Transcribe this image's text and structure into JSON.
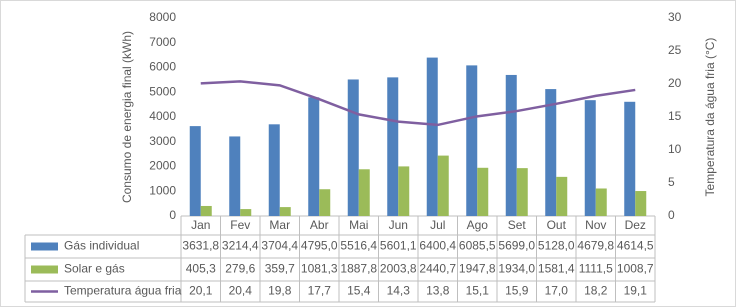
{
  "chart_data": {
    "type": "bar-line",
    "y_label": "Consumo de energia final (kWh)",
    "y2_label": "Temperatura da água fria (°C)",
    "categories": [
      "Jan",
      "Fev",
      "Mar",
      "Abr",
      "Mai",
      "Jun",
      "Jul",
      "Ago",
      "Set",
      "Out",
      "Nov",
      "Dez"
    ],
    "series": [
      {
        "name": "Gás individual",
        "type": "bar",
        "color": "#4f81bd",
        "values": [
          3631.8,
          3214.4,
          3704.4,
          4795.0,
          5516.4,
          5601.1,
          6400.4,
          6085.5,
          5699.0,
          5128.0,
          4679.8,
          4614.5
        ],
        "value_labels": [
          "3631,8",
          "3214,4",
          "3704,4",
          "4795,0",
          "5516,4",
          "5601,1",
          "6400,4",
          "6085,5",
          "5699,0",
          "5128,0",
          "4679,8",
          "4614,5"
        ]
      },
      {
        "name": "Solar e gás",
        "type": "bar",
        "color": "#9bbb59",
        "values": [
          405.3,
          279.6,
          359.7,
          1081.3,
          1887.8,
          2003.8,
          2440.7,
          1947.8,
          1934.0,
          1581.4,
          1111.5,
          1008.7
        ],
        "value_labels": [
          "405,3",
          "279,6",
          "359,7",
          "1081,3",
          "1887,8",
          "2003,8",
          "2440,7",
          "1947,8",
          "1934,0",
          "1581,4",
          "1111,5",
          "1008,7"
        ]
      },
      {
        "name": "Temperatura água fria",
        "type": "line",
        "axis": "y2",
        "color": "#7f5fa0",
        "values": [
          20.1,
          20.4,
          19.8,
          17.7,
          15.4,
          14.3,
          13.8,
          15.1,
          15.9,
          17.0,
          18.2,
          19.1
        ],
        "value_labels": [
          "20,1",
          "20,4",
          "19,8",
          "17,7",
          "15,4",
          "14,3",
          "13,8",
          "15,1",
          "15,9",
          "17,0",
          "18,2",
          "19,1"
        ]
      }
    ],
    "ylim": [
      0,
      8000
    ],
    "yticks": [
      0,
      1000,
      2000,
      3000,
      4000,
      5000,
      6000,
      7000,
      8000
    ],
    "y2lim": [
      0,
      30
    ],
    "y2ticks": [
      0,
      5,
      10,
      15,
      20,
      25,
      30
    ]
  }
}
